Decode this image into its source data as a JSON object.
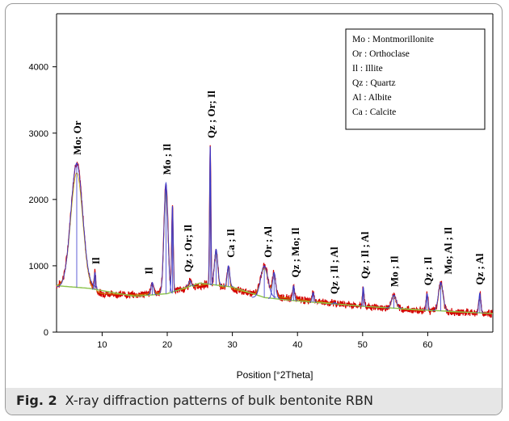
{
  "caption": {
    "label": "Fig. 2",
    "text": "X-ray diffraction patterns of bulk bentonite RBN"
  },
  "legend": {
    "entries": [
      "Mo : Montmorillonite",
      "Or : Orthoclase",
      "Il : Illite",
      "Qz : Quartz",
      "Al : Albite",
      "Ca : Calcite"
    ]
  },
  "colors": {
    "observed": "#d40000",
    "peaks": "#3a3acc",
    "fit": "#c8a400",
    "background": "#8bc34a"
  },
  "chart_data": {
    "type": "line",
    "title": "",
    "xlabel": "Position [°2Theta]",
    "ylabel": "",
    "xlim": [
      3,
      70
    ],
    "ylim": [
      0,
      4800
    ],
    "xticks": [
      10,
      20,
      30,
      40,
      50,
      60
    ],
    "yticks": [
      0,
      1000,
      2000,
      3000,
      4000
    ],
    "grid": false,
    "legend_position": "top-right",
    "baseline": [
      [
        3,
        700
      ],
      [
        7,
        690
      ],
      [
        10,
        580
      ],
      [
        15,
        560
      ],
      [
        20,
        600
      ],
      [
        26,
        720
      ],
      [
        30,
        650
      ],
      [
        34,
        560
      ],
      [
        38,
        520
      ],
      [
        42,
        470
      ],
      [
        48,
        410
      ],
      [
        55,
        350
      ],
      [
        62,
        310
      ],
      [
        70,
        280
      ]
    ],
    "background_curve": [
      [
        3,
        700
      ],
      [
        8,
        660
      ],
      [
        15,
        540
      ],
      [
        20,
        580
      ],
      [
        25,
        740
      ],
      [
        30,
        680
      ],
      [
        35,
        520
      ],
      [
        40,
        470
      ],
      [
        50,
        390
      ],
      [
        60,
        330
      ],
      [
        70,
        280
      ]
    ],
    "peaks": [
      {
        "x": 6.1,
        "y": 2550,
        "w": 0.9
      },
      {
        "x": 8.9,
        "y": 900,
        "w": 0.12
      },
      {
        "x": 17.7,
        "y": 750,
        "w": 0.2
      },
      {
        "x": 19.8,
        "y": 2250,
        "w": 0.3
      },
      {
        "x": 20.8,
        "y": 1900,
        "w": 0.12
      },
      {
        "x": 23.5,
        "y": 780,
        "w": 0.2
      },
      {
        "x": 26.6,
        "y": 2800,
        "w": 0.1
      },
      {
        "x": 27.5,
        "y": 1250,
        "w": 0.25
      },
      {
        "x": 29.4,
        "y": 1000,
        "w": 0.2
      },
      {
        "x": 34.9,
        "y": 1000,
        "w": 0.55
      },
      {
        "x": 36.4,
        "y": 900,
        "w": 0.25
      },
      {
        "x": 39.4,
        "y": 700,
        "w": 0.15
      },
      {
        "x": 42.4,
        "y": 600,
        "w": 0.15
      },
      {
        "x": 45.7,
        "y": 450,
        "w": 0.15
      },
      {
        "x": 50.1,
        "y": 680,
        "w": 0.12
      },
      {
        "x": 54.8,
        "y": 560,
        "w": 0.35
      },
      {
        "x": 59.9,
        "y": 580,
        "w": 0.15
      },
      {
        "x": 62.0,
        "y": 750,
        "w": 0.35
      },
      {
        "x": 68.0,
        "y": 590,
        "w": 0.15
      }
    ],
    "annotations": [
      {
        "x": 6.2,
        "text": "Mo; Or"
      },
      {
        "x": 9.1,
        "text": "Il"
      },
      {
        "x": 17.2,
        "text": "Il"
      },
      {
        "x": 20.0,
        "text": "Mo ; Il"
      },
      {
        "x": 23.2,
        "text": "Qz ; Or; Il"
      },
      {
        "x": 26.8,
        "text": "Qz ; Or; Il"
      },
      {
        "x": 29.8,
        "text": "Ca ; Il"
      },
      {
        "x": 35.5,
        "text": "Or  ;  Al"
      },
      {
        "x": 39.7,
        "text": "Qz ; Mo;  Il"
      },
      {
        "x": 45.7,
        "text": "Qz ; Il ; Al"
      },
      {
        "x": 50.4,
        "text": "Qz ; Il ; Al"
      },
      {
        "x": 54.9,
        "text": "Mo ; Il"
      },
      {
        "x": 60.1,
        "text": "Qz ; Il"
      },
      {
        "x": 63.2,
        "text": "Mo; Al ; Il"
      },
      {
        "x": 68.0,
        "text": "Qz ; Al"
      }
    ]
  }
}
